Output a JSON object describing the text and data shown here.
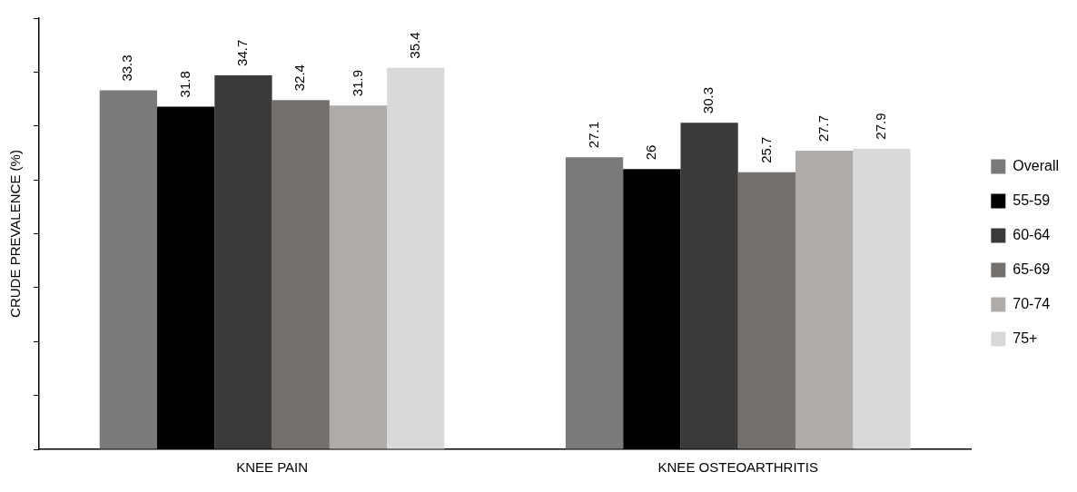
{
  "chart_data": {
    "type": "bar",
    "ylabel": "CRUDE PREVALENCE (%)",
    "categories": [
      "KNEE PAIN",
      "KNEE OSTEOARTHRITIS"
    ],
    "series": [
      {
        "name": "Overall",
        "color": "#7a7a7a",
        "values": [
          33.3,
          27.1
        ]
      },
      {
        "name": "55-59",
        "color": "#000000",
        "values": [
          31.8,
          26
        ]
      },
      {
        "name": "60-64",
        "color": "#3b3a39",
        "values": [
          34.7,
          30.3
        ]
      },
      {
        "name": "65-69",
        "color": "#74706e",
        "values": [
          32.4,
          25.7
        ]
      },
      {
        "name": "70-74",
        "color": "#aeaba9",
        "values": [
          31.9,
          27.7
        ]
      },
      {
        "name": "75+",
        "color": "#d9d9d9",
        "values": [
          35.4,
          27.9
        ]
      }
    ],
    "ylim": [
      0,
      40
    ],
    "yticks": [
      {
        "value": 0,
        "label": null
      },
      {
        "value": 5,
        "label": null
      },
      {
        "value": 10,
        "label": null
      },
      {
        "value": 15,
        "label": null
      },
      {
        "value": 20,
        "label": null
      },
      {
        "value": 25,
        "label": null
      },
      {
        "value": 30,
        "label": null
      },
      {
        "value": 35,
        "label": null
      },
      {
        "value": 40,
        "label": null
      }
    ],
    "tick_labels": "x",
    "data_labels": true,
    "legend": "right",
    "grid": false
  }
}
